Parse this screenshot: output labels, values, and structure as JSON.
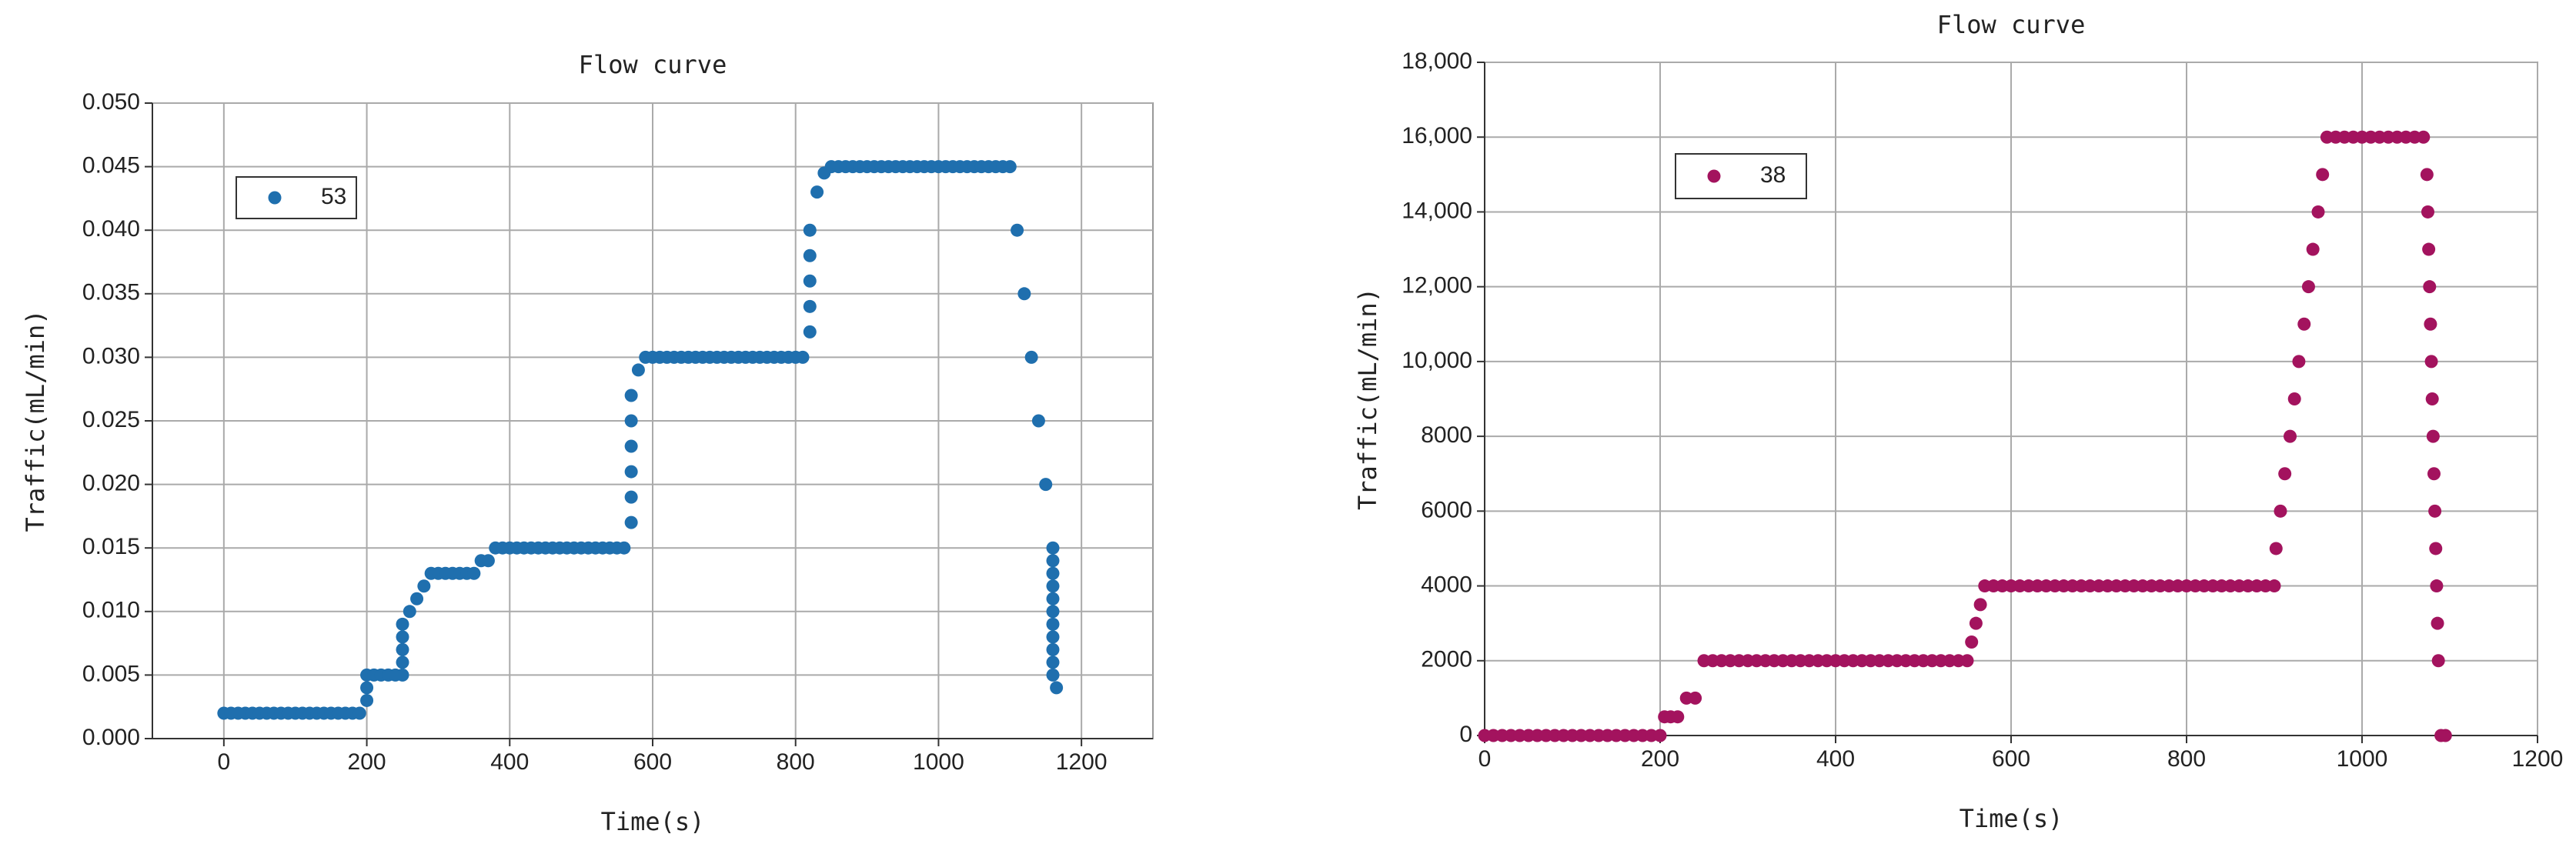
{
  "chart_data": [
    {
      "type": "scatter",
      "title": "Flow curve",
      "x_label": "Time(s)",
      "y_label": "Traffic(mL/min)",
      "series": [
        {
          "name": "53",
          "color": "#1f6fae",
          "x": [
            0,
            10,
            20,
            30,
            40,
            50,
            60,
            70,
            80,
            90,
            100,
            110,
            120,
            130,
            140,
            150,
            160,
            170,
            180,
            190,
            200,
            200,
            200,
            210,
            220,
            230,
            240,
            250,
            250,
            250,
            250,
            250,
            260,
            270,
            280,
            290,
            300,
            310,
            320,
            330,
            340,
            350,
            360,
            370,
            380,
            390,
            400,
            410,
            420,
            430,
            440,
            450,
            460,
            470,
            480,
            490,
            500,
            510,
            520,
            530,
            540,
            550,
            560,
            570,
            570,
            570,
            570,
            570,
            570,
            580,
            590,
            600,
            610,
            620,
            630,
            640,
            650,
            660,
            670,
            680,
            690,
            700,
            710,
            720,
            730,
            740,
            750,
            760,
            770,
            780,
            790,
            800,
            810,
            820,
            820,
            820,
            820,
            820,
            830,
            840,
            850,
            860,
            870,
            880,
            890,
            900,
            910,
            920,
            930,
            940,
            950,
            960,
            970,
            980,
            990,
            1000,
            1010,
            1020,
            1030,
            1040,
            1050,
            1060,
            1070,
            1080,
            1090,
            1100,
            1110,
            1120,
            1130,
            1140,
            1150,
            1160,
            1160,
            1160,
            1160,
            1160,
            1160,
            1160,
            1160,
            1160,
            1160,
            1160,
            1165
          ],
          "values": [
            0.002,
            0.002,
            0.002,
            0.002,
            0.002,
            0.002,
            0.002,
            0.002,
            0.002,
            0.002,
            0.002,
            0.002,
            0.002,
            0.002,
            0.002,
            0.002,
            0.002,
            0.002,
            0.002,
            0.002,
            0.003,
            0.004,
            0.005,
            0.005,
            0.005,
            0.005,
            0.005,
            0.005,
            0.006,
            0.007,
            0.008,
            0.009,
            0.01,
            0.011,
            0.012,
            0.013,
            0.013,
            0.013,
            0.013,
            0.013,
            0.013,
            0.013,
            0.014,
            0.014,
            0.015,
            0.015,
            0.015,
            0.015,
            0.015,
            0.015,
            0.015,
            0.015,
            0.015,
            0.015,
            0.015,
            0.015,
            0.015,
            0.015,
            0.015,
            0.015,
            0.015,
            0.015,
            0.015,
            0.017,
            0.019,
            0.021,
            0.023,
            0.025,
            0.027,
            0.029,
            0.03,
            0.03,
            0.03,
            0.03,
            0.03,
            0.03,
            0.03,
            0.03,
            0.03,
            0.03,
            0.03,
            0.03,
            0.03,
            0.03,
            0.03,
            0.03,
            0.03,
            0.03,
            0.03,
            0.03,
            0.03,
            0.03,
            0.03,
            0.032,
            0.034,
            0.036,
            0.038,
            0.04,
            0.043,
            0.0445,
            0.045,
            0.045,
            0.045,
            0.045,
            0.045,
            0.045,
            0.045,
            0.045,
            0.045,
            0.045,
            0.045,
            0.045,
            0.045,
            0.045,
            0.045,
            0.045,
            0.045,
            0.045,
            0.045,
            0.045,
            0.045,
            0.045,
            0.045,
            0.045,
            0.045,
            0.045,
            0.04,
            0.035,
            0.03,
            0.025,
            0.02,
            0.015,
            0.014,
            0.013,
            0.012,
            0.011,
            0.01,
            0.009,
            0.008,
            0.007,
            0.006,
            0.005,
            0.004
          ]
        }
      ],
      "xlim": [
        -100,
        1300
      ],
      "xticks": [
        0,
        200,
        400,
        600,
        800,
        1000,
        1200
      ],
      "ylim": [
        0,
        0.05
      ],
      "yticks": [
        {
          "value": 0,
          "label": "0.000"
        },
        {
          "value": 0.005,
          "label": "0.005"
        },
        {
          "value": 0.01,
          "label": "0.010"
        },
        {
          "value": 0.015,
          "label": "0.015"
        },
        {
          "value": 0.02,
          "label": "0.020"
        },
        {
          "value": 0.025,
          "label": "0.025"
        },
        {
          "value": 0.03,
          "label": "0.030"
        },
        {
          "value": 0.035,
          "label": "0.035"
        },
        {
          "value": 0.04,
          "label": "0.040"
        },
        {
          "value": 0.045,
          "label": "0.045"
        },
        {
          "value": 0.05,
          "label": "0.050"
        }
      ],
      "grid": true,
      "legend": "upper left"
    },
    {
      "type": "scatter",
      "title": "Flow curve",
      "x_label": "Time(s)",
      "y_label": "Traffic(mL/min)",
      "series": [
        {
          "name": "38",
          "color": "#a3135e",
          "x": [
            0,
            10,
            20,
            30,
            40,
            50,
            60,
            70,
            80,
            90,
            100,
            110,
            120,
            130,
            140,
            150,
            160,
            170,
            180,
            190,
            200,
            205,
            212,
            220,
            230,
            240,
            250,
            260,
            270,
            280,
            290,
            300,
            310,
            320,
            330,
            340,
            350,
            360,
            370,
            380,
            390,
            400,
            410,
            420,
            430,
            440,
            450,
            460,
            470,
            480,
            490,
            500,
            510,
            520,
            530,
            540,
            550,
            555,
            560,
            565,
            570,
            580,
            590,
            600,
            610,
            620,
            630,
            640,
            650,
            660,
            670,
            680,
            690,
            700,
            710,
            720,
            730,
            740,
            750,
            760,
            770,
            780,
            790,
            800,
            810,
            820,
            830,
            840,
            850,
            860,
            870,
            880,
            890,
            900,
            902,
            907,
            912,
            918,
            923,
            928,
            934,
            939,
            944,
            950,
            955,
            960,
            970,
            980,
            990,
            1000,
            1010,
            1020,
            1030,
            1040,
            1050,
            1060,
            1070,
            1074,
            1075,
            1076,
            1077,
            1078,
            1079,
            1080,
            1081,
            1082,
            1083,
            1084,
            1085,
            1086,
            1087,
            1090,
            1095
          ],
          "values": [
            0,
            0,
            0,
            0,
            0,
            0,
            0,
            0,
            0,
            0,
            0,
            0,
            0,
            0,
            0,
            0,
            0,
            0,
            0,
            0,
            0,
            500,
            500,
            500,
            1000,
            1000,
            2000,
            2000,
            2000,
            2000,
            2000,
            2000,
            2000,
            2000,
            2000,
            2000,
            2000,
            2000,
            2000,
            2000,
            2000,
            2000,
            2000,
            2000,
            2000,
            2000,
            2000,
            2000,
            2000,
            2000,
            2000,
            2000,
            2000,
            2000,
            2000,
            2000,
            2000,
            2500,
            3000,
            3500,
            4000,
            4000,
            4000,
            4000,
            4000,
            4000,
            4000,
            4000,
            4000,
            4000,
            4000,
            4000,
            4000,
            4000,
            4000,
            4000,
            4000,
            4000,
            4000,
            4000,
            4000,
            4000,
            4000,
            4000,
            4000,
            4000,
            4000,
            4000,
            4000,
            4000,
            4000,
            4000,
            4000,
            4000,
            5000,
            6000,
            7000,
            8000,
            9000,
            10000,
            11000,
            12000,
            13000,
            14000,
            15000,
            16000,
            16000,
            16000,
            16000,
            16000,
            16000,
            16000,
            16000,
            16000,
            16000,
            16000,
            16000,
            15000,
            14000,
            13000,
            12000,
            11000,
            10000,
            9000,
            8000,
            7000,
            6000,
            5000,
            4000,
            3000,
            2000,
            0,
            0
          ]
        }
      ],
      "xlim": [
        0,
        1200
      ],
      "xticks": [
        0,
        200,
        400,
        600,
        800,
        1000,
        1200
      ],
      "ylim": [
        0,
        18000
      ],
      "yticks": [
        0,
        2000,
        4000,
        6000,
        8000,
        {
          "value": 10000,
          "label": "10,000"
        },
        {
          "value": 12000,
          "label": "12,000"
        },
        {
          "value": 14000,
          "label": "14,000"
        },
        {
          "value": 16000,
          "label": "16,000"
        },
        {
          "value": 18000,
          "label": "18,000"
        }
      ],
      "grid": true,
      "legend": "upper left"
    }
  ]
}
